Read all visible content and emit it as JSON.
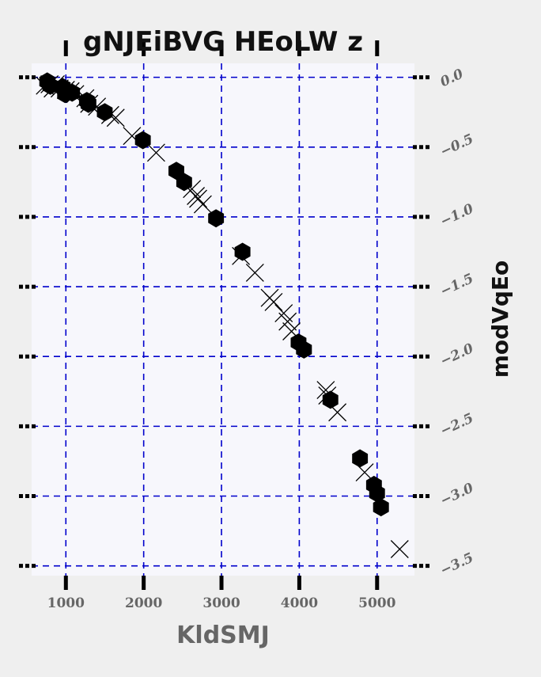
{
  "chart_data": {
    "type": "scatter",
    "title": "gNJEiBVG HEoLW z",
    "xlabel": "KldSMJ",
    "ylabel": "modVqEo",
    "xlim": [
      560,
      5480
    ],
    "ylim": [
      -3.57,
      0.1
    ],
    "xticks": [
      1000,
      2000,
      3000,
      4000,
      5000
    ],
    "yticks": [
      0.0,
      -0.5,
      -1.0,
      -1.5,
      -2.0,
      -2.5,
      -3.0,
      -3.5
    ],
    "ytick_labels": [
      "0.0",
      "−0.5",
      "−1.0",
      "−1.5",
      "−2.0",
      "−2.5",
      "−3.0",
      "−3.5"
    ],
    "grid": true,
    "colors": {
      "plot_bg": "#f7f7fc",
      "page_bg": "#efefef",
      "grid": "#0000cc",
      "marker": "#000000"
    },
    "series": [
      {
        "marker": "hexagon",
        "points": [
          [
            760,
            -0.03
          ],
          [
            800,
            -0.06
          ],
          [
            960,
            -0.07
          ],
          [
            990,
            -0.12
          ],
          [
            1080,
            -0.11
          ],
          [
            1270,
            -0.17
          ],
          [
            1290,
            -0.19
          ],
          [
            1500,
            -0.25
          ],
          [
            1990,
            -0.45
          ],
          [
            2420,
            -0.67
          ],
          [
            2520,
            -0.75
          ],
          [
            2930,
            -1.01
          ],
          [
            3270,
            -1.25
          ],
          [
            3990,
            -1.9
          ],
          [
            4060,
            -1.95
          ],
          [
            4400,
            -2.31
          ],
          [
            4780,
            -2.73
          ],
          [
            4960,
            -2.92
          ],
          [
            5000,
            -2.98
          ],
          [
            5050,
            -3.08
          ]
        ]
      },
      {
        "marker": "x",
        "points": [
          [
            730,
            -0.06
          ],
          [
            790,
            -0.05
          ],
          [
            830,
            -0.08
          ],
          [
            870,
            -0.05
          ],
          [
            920,
            -0.08
          ],
          [
            1000,
            -0.09
          ],
          [
            1060,
            -0.1
          ],
          [
            1120,
            -0.12
          ],
          [
            1250,
            -0.15
          ],
          [
            1300,
            -0.19
          ],
          [
            1400,
            -0.21
          ],
          [
            1570,
            -0.27
          ],
          [
            1640,
            -0.29
          ],
          [
            1850,
            -0.42
          ],
          [
            2160,
            -0.54
          ],
          [
            2620,
            -0.8
          ],
          [
            2670,
            -0.85
          ],
          [
            2700,
            -0.87
          ],
          [
            2760,
            -0.91
          ],
          [
            3250,
            -1.28
          ],
          [
            3430,
            -1.4
          ],
          [
            3620,
            -1.58
          ],
          [
            3670,
            -1.61
          ],
          [
            3800,
            -1.69
          ],
          [
            3850,
            -1.75
          ],
          [
            3900,
            -1.82
          ],
          [
            4340,
            -2.24
          ],
          [
            4360,
            -2.28
          ],
          [
            4490,
            -2.4
          ],
          [
            4840,
            -2.83
          ],
          [
            5290,
            -3.38
          ]
        ]
      }
    ]
  }
}
